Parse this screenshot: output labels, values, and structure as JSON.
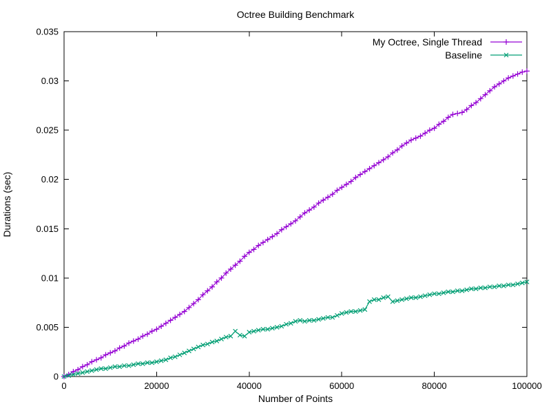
{
  "window": {
    "background": "#ffffff"
  },
  "chart_data": {
    "type": "line",
    "title": "Octree Building Benchmark",
    "xlabel": "Number of Points",
    "ylabel": "Durations (sec)",
    "xlim": [
      0,
      100000
    ],
    "ylim": [
      0,
      0.035
    ],
    "grid": false,
    "legend_position": "top-right-inside",
    "xticks": {
      "values": [
        0,
        20000,
        40000,
        60000,
        80000,
        100000
      ],
      "labels": [
        "0",
        "20000",
        "40000",
        "60000",
        "80000",
        "100000"
      ]
    },
    "yticks": {
      "values": [
        0,
        0.005,
        0.01,
        0.015,
        0.02,
        0.025,
        0.03,
        0.035
      ],
      "labels": [
        "0",
        "0.005",
        "0.01",
        "0.015",
        "0.02",
        "0.025",
        "0.03",
        "0.035"
      ]
    },
    "x": [
      0,
      1000,
      2000,
      3000,
      4000,
      5000,
      6000,
      7000,
      8000,
      9000,
      10000,
      11000,
      12000,
      13000,
      14000,
      15000,
      16000,
      17000,
      18000,
      19000,
      20000,
      21000,
      22000,
      23000,
      24000,
      25000,
      26000,
      27000,
      28000,
      29000,
      30000,
      31000,
      32000,
      33000,
      34000,
      35000,
      36000,
      37000,
      38000,
      39000,
      40000,
      41000,
      42000,
      43000,
      44000,
      45000,
      46000,
      47000,
      48000,
      49000,
      50000,
      51000,
      52000,
      53000,
      54000,
      55000,
      56000,
      57000,
      58000,
      59000,
      60000,
      61000,
      62000,
      63000,
      64000,
      65000,
      66000,
      67000,
      68000,
      69000,
      70000,
      71000,
      72000,
      73000,
      74000,
      75000,
      76000,
      77000,
      78000,
      79000,
      80000,
      81000,
      82000,
      83000,
      84000,
      85000,
      86000,
      87000,
      88000,
      89000,
      90000,
      91000,
      92000,
      93000,
      94000,
      95000,
      96000,
      97000,
      98000,
      99000,
      100000
    ],
    "series": [
      {
        "name": "My Octree, Single Thread",
        "color": "#9400d3",
        "marker": "plus",
        "values": [
          0.0,
          0.0002,
          0.0005,
          0.0007,
          0.001,
          0.0012,
          0.0015,
          0.0017,
          0.0019,
          0.0022,
          0.0024,
          0.0026,
          0.0029,
          0.0031,
          0.0034,
          0.0036,
          0.0038,
          0.0041,
          0.0043,
          0.0046,
          0.0048,
          0.0051,
          0.0054,
          0.0057,
          0.006,
          0.0063,
          0.0066,
          0.007,
          0.0074,
          0.0078,
          0.0083,
          0.0087,
          0.0091,
          0.0096,
          0.01,
          0.0105,
          0.0109,
          0.0113,
          0.0117,
          0.0122,
          0.0126,
          0.0129,
          0.0133,
          0.0136,
          0.0139,
          0.0142,
          0.0145,
          0.0149,
          0.0152,
          0.0155,
          0.0158,
          0.0162,
          0.0166,
          0.0169,
          0.0172,
          0.0176,
          0.0179,
          0.0182,
          0.0185,
          0.0189,
          0.0192,
          0.0195,
          0.0198,
          0.0202,
          0.0205,
          0.0208,
          0.0211,
          0.0214,
          0.0217,
          0.022,
          0.0223,
          0.0227,
          0.023,
          0.0234,
          0.0237,
          0.024,
          0.0242,
          0.0244,
          0.0247,
          0.025,
          0.0252,
          0.0256,
          0.0259,
          0.0263,
          0.0266,
          0.0267,
          0.0268,
          0.0271,
          0.0275,
          0.0278,
          0.0282,
          0.0286,
          0.029,
          0.0294,
          0.0297,
          0.03,
          0.0303,
          0.0305,
          0.0307,
          0.0309,
          0.031
        ]
      },
      {
        "name": "Baseline",
        "color": "#009e73",
        "marker": "cross",
        "values": [
          0.0,
          0.0001,
          0.0002,
          0.0003,
          0.0004,
          0.0005,
          0.0006,
          0.0007,
          0.0008,
          0.0008,
          0.0009,
          0.001,
          0.001,
          0.0011,
          0.0011,
          0.0012,
          0.0013,
          0.0013,
          0.0014,
          0.0014,
          0.0015,
          0.0016,
          0.0017,
          0.0019,
          0.002,
          0.0022,
          0.0024,
          0.0026,
          0.0028,
          0.003,
          0.0032,
          0.0033,
          0.0035,
          0.0036,
          0.0038,
          0.004,
          0.0041,
          0.0046,
          0.0042,
          0.0041,
          0.0045,
          0.0046,
          0.0047,
          0.0048,
          0.0048,
          0.0049,
          0.005,
          0.0051,
          0.0053,
          0.0054,
          0.0056,
          0.0057,
          0.0056,
          0.0057,
          0.0057,
          0.0058,
          0.0059,
          0.006,
          0.006,
          0.0062,
          0.0064,
          0.0065,
          0.0066,
          0.0066,
          0.0067,
          0.0068,
          0.0076,
          0.0078,
          0.0078,
          0.008,
          0.0081,
          0.0076,
          0.0077,
          0.0078,
          0.0079,
          0.008,
          0.008,
          0.0081,
          0.0082,
          0.0083,
          0.0084,
          0.0084,
          0.0085,
          0.0086,
          0.0086,
          0.0087,
          0.0087,
          0.0088,
          0.0089,
          0.0089,
          0.009,
          0.009,
          0.0091,
          0.0091,
          0.0092,
          0.0092,
          0.0093,
          0.0093,
          0.0094,
          0.0095,
          0.0096
        ]
      }
    ]
  }
}
